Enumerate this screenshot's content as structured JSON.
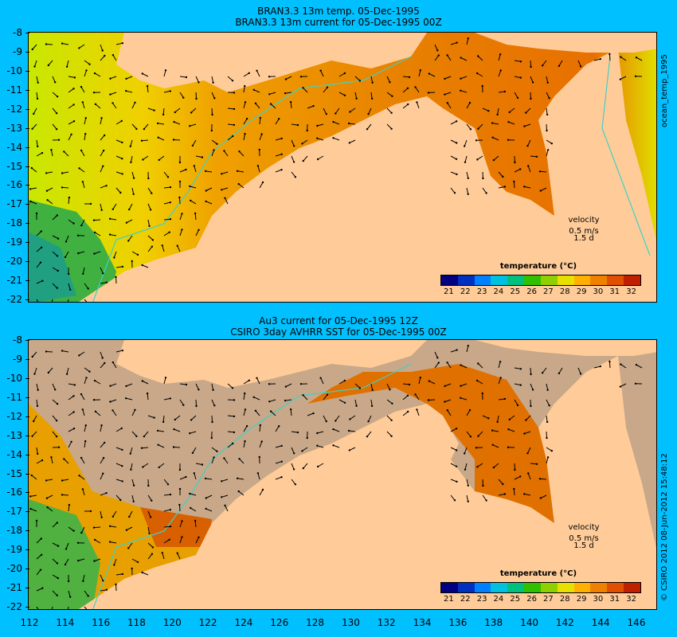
{
  "top_panel": {
    "title_line1": "BRAN3.3 13m temp. 05-Dec-1995",
    "title_line2": "BRAN3.3 13m current for 05-Dec-1995 00Z",
    "side_label": "ocean_temp_1995",
    "velocity_label": "velocity",
    "velocity_scale": "0.5 m/s",
    "velocity_time": "1.5 d"
  },
  "bottom_panel": {
    "title_line1": "Au3 current for 05-Dec-1995 12Z",
    "title_line2": "CSIRO 3day AVHRR SST for 05-Dec-1995 00Z",
    "side_label": "© CSIRO 2012   08-Jun-2012 15:48:12",
    "velocity_label": "velocity",
    "velocity_scale": "0.5 m/s",
    "velocity_time": "1.5 d"
  },
  "colorbar": {
    "title": "temperature (°C)",
    "ticks": [
      "21",
      "22",
      "23",
      "24",
      "25",
      "26",
      "27",
      "28",
      "29",
      "30",
      "31",
      "32"
    ],
    "colors": [
      "#000080",
      "#0030c0",
      "#0080ff",
      "#00c0e0",
      "#00c080",
      "#30c000",
      "#90d000",
      "#e8e000",
      "#ffb000",
      "#f08000",
      "#e05000",
      "#c02000"
    ]
  },
  "axes": {
    "y_ticks_top": [
      "-8",
      "-9",
      "-10",
      "-11",
      "-12",
      "-13",
      "-14",
      "-15",
      "-16",
      "-17",
      "-18",
      "-19",
      "-20",
      "-21",
      "-22"
    ],
    "y_ticks_bottom": [
      "-8",
      "-9",
      "-10",
      "-11",
      "-12",
      "-13",
      "-14",
      "-15",
      "-16",
      "-17",
      "-18",
      "-19",
      "-20",
      "-21",
      "-22"
    ],
    "x_ticks": [
      "112",
      "114",
      "116",
      "118",
      "120",
      "122",
      "124",
      "126",
      "128",
      "130",
      "132",
      "134",
      "136",
      "138",
      "140",
      "142",
      "144",
      "146"
    ]
  },
  "colors": {
    "background": "#00c0ff",
    "land": "#ffcc99",
    "no_data": "#c8a888",
    "isobath": "#40d0c8"
  }
}
